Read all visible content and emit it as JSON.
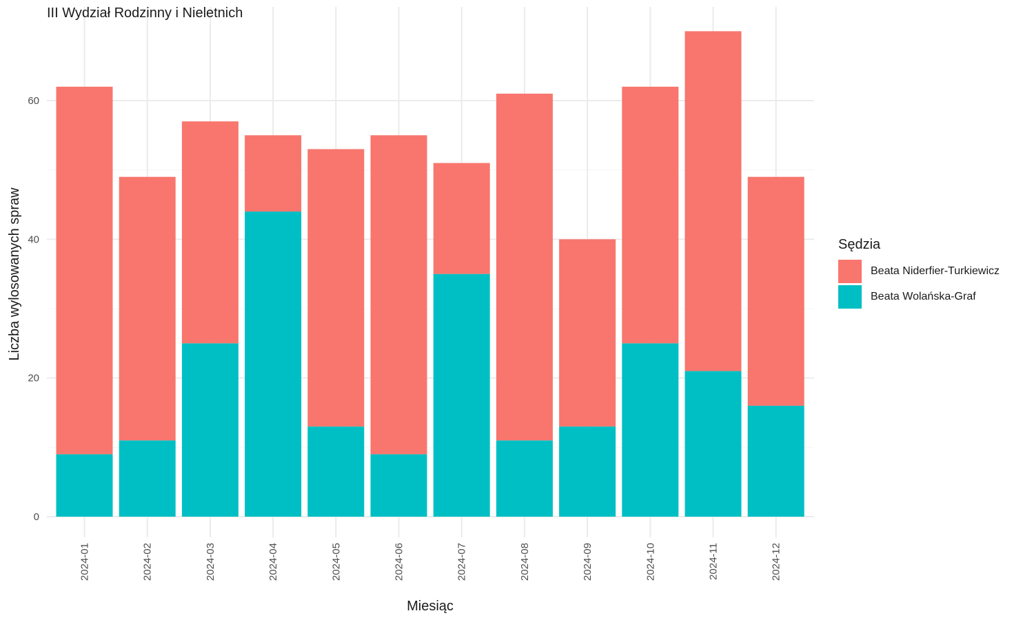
{
  "chart_data": {
    "type": "bar",
    "stacked": true,
    "title": "III Wydział Rodzinny i Nieletnich",
    "xlabel": "Miesiąc",
    "ylabel": "Liczba wylosowanych spraw",
    "categories": [
      "2024-01",
      "2024-02",
      "2024-03",
      "2024-04",
      "2024-05",
      "2024-06",
      "2024-07",
      "2024-08",
      "2024-09",
      "2024-10",
      "2024-11",
      "2024-12"
    ],
    "series": [
      {
        "name": "Beata Wolańska-Graf",
        "color": "#00BFC4",
        "values": [
          9,
          11,
          25,
          44,
          13,
          9,
          35,
          11,
          13,
          25,
          21,
          16
        ]
      },
      {
        "name": "Beata Niderfier-Turkiewicz",
        "color": "#F8766D",
        "values": [
          53,
          38,
          32,
          11,
          40,
          46,
          16,
          50,
          27,
          37,
          49,
          33
        ]
      }
    ],
    "ylim": [
      0,
      70
    ],
    "yticks": [
      0,
      20,
      40,
      60
    ],
    "grid": true,
    "legend": {
      "title": "Sędzia",
      "position": "right",
      "order": [
        "Beata Niderfier-Turkiewicz",
        "Beata Wolańska-Graf"
      ]
    }
  }
}
